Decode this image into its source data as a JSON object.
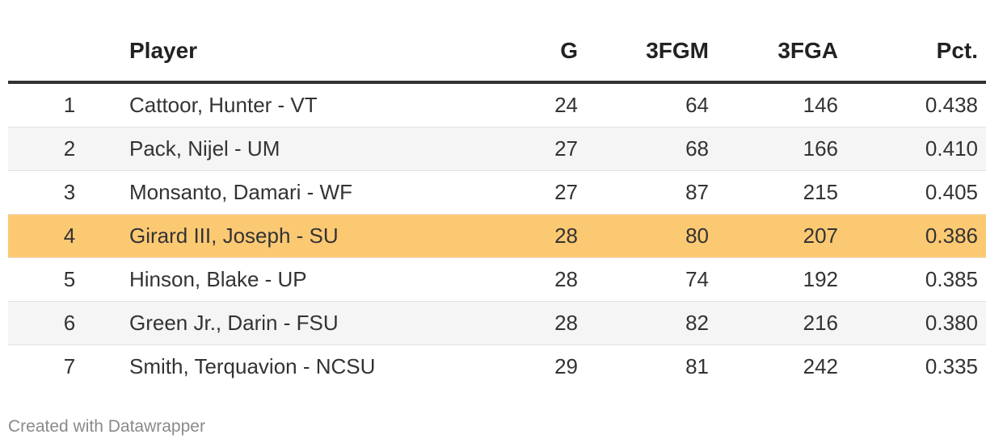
{
  "table": {
    "headers": {
      "rank": "",
      "player": "Player",
      "g": "G",
      "fgm": "3FGM",
      "fga": "3FGA",
      "pct": "Pct."
    },
    "rows": [
      {
        "rank": "1",
        "player": "Cattoor, Hunter - VT",
        "g": "24",
        "fgm": "64",
        "fga": "146",
        "pct": "0.438",
        "highlight": false
      },
      {
        "rank": "2",
        "player": "Pack, Nijel - UM",
        "g": "27",
        "fgm": "68",
        "fga": "166",
        "pct": "0.410",
        "highlight": false
      },
      {
        "rank": "3",
        "player": "Monsanto, Damari - WF",
        "g": "27",
        "fgm": "87",
        "fga": "215",
        "pct": "0.405",
        "highlight": false
      },
      {
        "rank": "4",
        "player": "Girard III, Joseph - SU",
        "g": "28",
        "fgm": "80",
        "fga": "207",
        "pct": "0.386",
        "highlight": true
      },
      {
        "rank": "5",
        "player": "Hinson, Blake - UP",
        "g": "28",
        "fgm": "74",
        "fga": "192",
        "pct": "0.385",
        "highlight": false
      },
      {
        "rank": "6",
        "player": "Green Jr., Darin - FSU",
        "g": "28",
        "fgm": "82",
        "fga": "216",
        "pct": "0.380",
        "highlight": false
      },
      {
        "rank": "7",
        "player": "Smith, Terquavion - NCSU",
        "g": "29",
        "fgm": "81",
        "fga": "242",
        "pct": "0.335",
        "highlight": false
      }
    ]
  },
  "colors": {
    "highlight": "#fcc973",
    "stripe": "#f5f5f5",
    "header_rule": "#333333"
  },
  "footer": {
    "credit": "Created with Datawrapper"
  }
}
